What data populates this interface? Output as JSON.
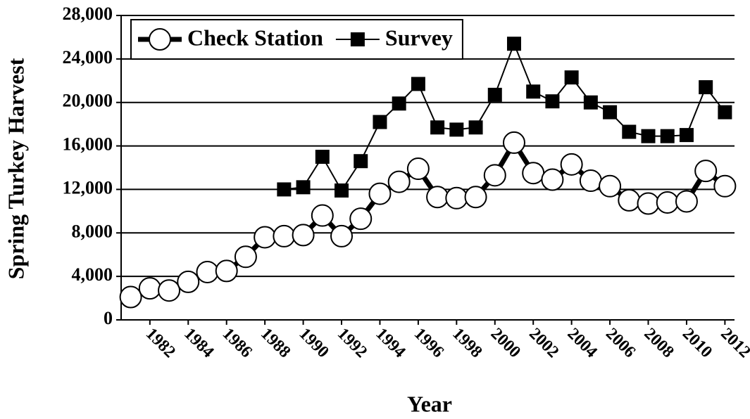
{
  "chart_data": {
    "type": "line",
    "x_label": "Year",
    "y_label": "Spring Turkey Harvest",
    "x": [
      1981,
      1982,
      1983,
      1984,
      1985,
      1986,
      1987,
      1988,
      1989,
      1990,
      1991,
      1992,
      1993,
      1994,
      1995,
      1996,
      1997,
      1998,
      1999,
      2000,
      2001,
      2002,
      2003,
      2004,
      2005,
      2006,
      2007,
      2008,
      2009,
      2010,
      2011,
      2012
    ],
    "series": [
      {
        "name": "Check Station",
        "color": "#000000",
        "marker": "circle",
        "values": [
          2100,
          2900,
          2700,
          3500,
          4400,
          4500,
          5800,
          7600,
          7700,
          7800,
          9600,
          7700,
          9300,
          11600,
          12700,
          13900,
          11300,
          11200,
          11300,
          13300,
          16300,
          13500,
          12900,
          14300,
          12800,
          12300,
          11000,
          10700,
          10800,
          10900,
          13700,
          12300
        ]
      },
      {
        "name": "Survey",
        "color": "#000000",
        "marker": "square",
        "values": [
          null,
          null,
          null,
          null,
          null,
          null,
          null,
          null,
          12000,
          12200,
          15000,
          11900,
          14600,
          18200,
          19900,
          21700,
          17700,
          17500,
          17700,
          20700,
          25400,
          21000,
          20100,
          22300,
          20000,
          19100,
          17300,
          16900,
          16900,
          17000,
          21400,
          19100
        ]
      }
    ],
    "xlim": [
      1980.5,
      2012.5
    ],
    "xticks": [
      1982,
      1984,
      1986,
      1988,
      1990,
      1992,
      1994,
      1996,
      1998,
      2000,
      2002,
      2004,
      2006,
      2008,
      2010,
      2012
    ],
    "ylim": [
      0,
      28000
    ],
    "yticks": [
      0,
      {
        "value": 4000,
        "label": "4,000"
      },
      {
        "value": 8000,
        "label": "8,000"
      },
      {
        "value": 12000,
        "label": "12,000"
      },
      {
        "value": 16000,
        "label": "16,000"
      },
      {
        "value": 20000,
        "label": "20,000"
      },
      {
        "value": 24000,
        "label": "24,000"
      },
      {
        "value": 28000,
        "label": "28,000"
      }
    ],
    "grid": true,
    "legend": "top-left"
  }
}
